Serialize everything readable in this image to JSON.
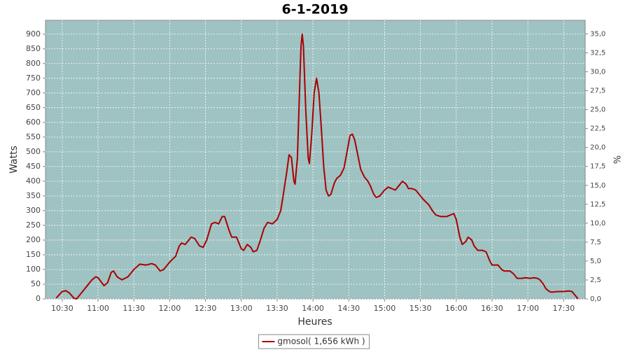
{
  "chart_data": {
    "type": "line",
    "title": "6-1-2019",
    "x_label": "Heures",
    "y_label": "Watts",
    "y2_label": "%",
    "background": "#9fc2c2",
    "grid": true,
    "legend_position": "bottom",
    "x": [
      "10:25",
      "10:30",
      "10:33",
      "10:36",
      "10:40",
      "10:42",
      "10:45",
      "10:50",
      "10:55",
      "10:58",
      "11:00",
      "11:05",
      "11:08",
      "11:11",
      "11:13",
      "11:16",
      "11:20",
      "11:25",
      "11:30",
      "11:35",
      "11:40",
      "11:45",
      "11:48",
      "11:52",
      "11:55",
      "12:00",
      "12:05",
      "12:08",
      "12:10",
      "12:13",
      "12:18",
      "12:21",
      "12:25",
      "12:28",
      "12:31",
      "12:35",
      "12:38",
      "12:41",
      "12:44",
      "12:46",
      "12:50",
      "12:52",
      "12:56",
      "13:00",
      "13:02",
      "13:05",
      "13:08",
      "13:10",
      "13:13",
      "13:16",
      "13:19",
      "13:22",
      "13:26",
      "13:30",
      "13:33",
      "13:35",
      "13:38",
      "13:40",
      "13:42",
      "13:44",
      "13:45",
      "13:47",
      "13:49",
      "13:50",
      "13:51",
      "13:52",
      "13:54",
      "13:56",
      "13:57",
      "13:59",
      "14:01",
      "14:03",
      "14:05",
      "14:07",
      "14:09",
      "14:11",
      "14:13",
      "14:15",
      "14:18",
      "14:20",
      "14:23",
      "14:26",
      "14:29",
      "14:31",
      "14:33",
      "14:35",
      "14:38",
      "14:40",
      "14:43",
      "14:46",
      "14:48",
      "14:51",
      "14:53",
      "14:56",
      "15:00",
      "15:03",
      "15:06",
      "15:09",
      "15:12",
      "15:15",
      "15:18",
      "15:20",
      "15:23",
      "15:26",
      "15:29",
      "15:32",
      "15:37",
      "15:40",
      "15:43",
      "15:47",
      "15:52",
      "15:55",
      "15:58",
      "16:00",
      "16:03",
      "16:05",
      "16:08",
      "16:10",
      "16:13",
      "16:15",
      "16:18",
      "16:22",
      "16:25",
      "16:28",
      "16:30",
      "16:35",
      "16:38",
      "16:40",
      "16:45",
      "16:48",
      "16:51",
      "16:55",
      "16:58",
      "17:02",
      "17:05",
      "17:08",
      "17:10",
      "17:13",
      "17:15",
      "17:18",
      "17:20",
      "17:25",
      "17:30",
      "17:34",
      "17:37",
      "17:39",
      "17:41",
      "17:42"
    ],
    "series": [
      {
        "name": "gmosol( 1,656 kWh )",
        "color": "#aa0000",
        "values": [
          3,
          25,
          28,
          20,
          2,
          0,
          15,
          40,
          65,
          75,
          72,
          45,
          55,
          90,
          95,
          75,
          65,
          75,
          100,
          118,
          115,
          120,
          115,
          95,
          100,
          125,
          145,
          180,
          190,
          185,
          210,
          205,
          180,
          175,
          200,
          255,
          260,
          255,
          280,
          280,
          230,
          210,
          210,
          170,
          165,
          185,
          175,
          160,
          165,
          200,
          240,
          260,
          255,
          270,
          300,
          350,
          430,
          490,
          480,
          400,
          390,
          480,
          740,
          860,
          900,
          860,
          640,
          480,
          460,
          560,
          700,
          750,
          700,
          580,
          450,
          370,
          350,
          355,
          395,
          410,
          420,
          445,
          510,
          555,
          560,
          540,
          480,
          440,
          415,
          400,
          385,
          355,
          345,
          350,
          370,
          380,
          375,
          370,
          385,
          400,
          390,
          375,
          375,
          370,
          355,
          340,
          320,
          300,
          285,
          280,
          280,
          285,
          290,
          270,
          210,
          185,
          195,
          210,
          200,
          180,
          165,
          165,
          160,
          130,
          115,
          115,
          100,
          95,
          95,
          85,
          70,
          70,
          72,
          70,
          72,
          70,
          65,
          50,
          35,
          25,
          23,
          25,
          25,
          27,
          25,
          15,
          5,
          0
        ]
      }
    ],
    "xlim": [
      "10:16",
      "17:48"
    ],
    "xticks": [
      "10:30",
      "11:00",
      "11:30",
      "12:00",
      "12:30",
      "13:00",
      "13:30",
      "14:00",
      "14:30",
      "15:00",
      "15:30",
      "16:00",
      "16:30",
      "17:00",
      "17:30"
    ],
    "ylim": [
      0,
      947
    ],
    "yticks": [
      0,
      50,
      100,
      150,
      200,
      250,
      300,
      350,
      400,
      450,
      500,
      550,
      600,
      650,
      700,
      750,
      800,
      850,
      900
    ],
    "y2lim": [
      0,
      36.8
    ],
    "y2ticks": [
      {
        "value": 0,
        "label": "0,0"
      },
      {
        "value": 2.5,
        "label": "2,5"
      },
      {
        "value": 5,
        "label": "5,0"
      },
      {
        "value": 7.5,
        "label": "7,5"
      },
      {
        "value": 10,
        "label": "10,0"
      },
      {
        "value": 12.5,
        "label": "12,5"
      },
      {
        "value": 15,
        "label": "15,0"
      },
      {
        "value": 17.5,
        "label": "17,5"
      },
      {
        "value": 20,
        "label": "20,0"
      },
      {
        "value": 22.5,
        "label": "22,5"
      },
      {
        "value": 25,
        "label": "25,0"
      },
      {
        "value": 27.5,
        "label": "27,5"
      },
      {
        "value": 30,
        "label": "30,0"
      },
      {
        "value": 32.5,
        "label": "32,5"
      },
      {
        "value": 35,
        "label": "35,0"
      }
    ]
  }
}
